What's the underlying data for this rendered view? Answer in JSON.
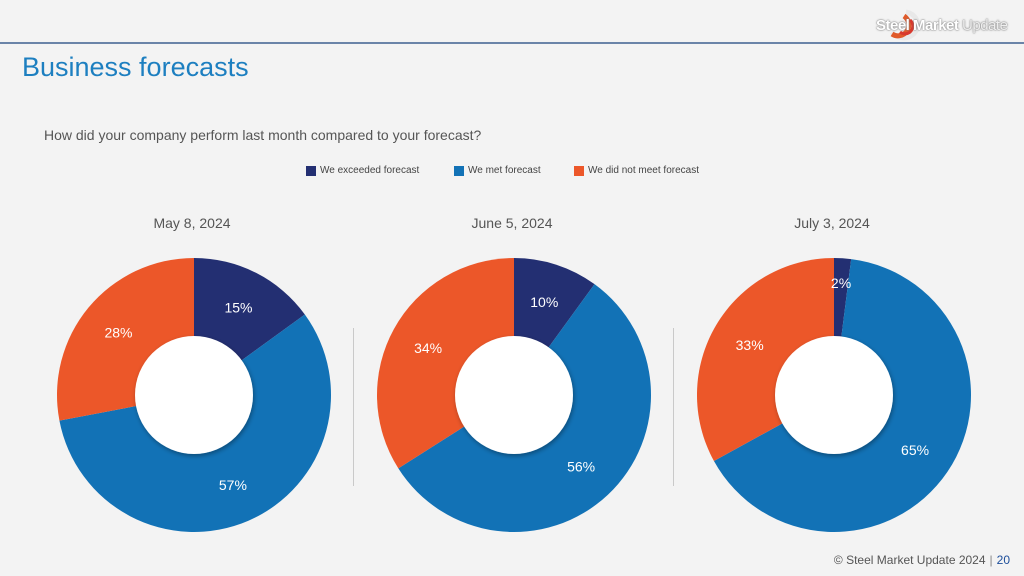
{
  "logo": {
    "brand_bold": "Steel Market",
    "brand_light": " Update",
    "mark": "SM"
  },
  "page": {
    "title": "Business forecasts",
    "question": "How did your company perform last month compared to your forecast?"
  },
  "colors": {
    "exceeded": "#232f72",
    "met": "#1272b6",
    "not_met": "#ec5729",
    "title": "#1d7fc0"
  },
  "legend": [
    {
      "label": "We exceeded forecast",
      "color": "#232f72"
    },
    {
      "label": "We met forecast",
      "color": "#1272b6"
    },
    {
      "label": "We did not meet forecast",
      "color": "#ec5729"
    }
  ],
  "chart_data": [
    {
      "type": "pie",
      "title": "May 8, 2024",
      "categories": [
        "We exceeded forecast",
        "We met forecast",
        "We did not meet forecast"
      ],
      "values": [
        15,
        57,
        28
      ],
      "labels": [
        "15%",
        "57%",
        "28%"
      ]
    },
    {
      "type": "pie",
      "title": "June 5, 2024",
      "categories": [
        "We exceeded forecast",
        "We met forecast",
        "We did not meet forecast"
      ],
      "values": [
        10,
        56,
        34
      ],
      "labels": [
        "10%",
        "56%",
        "34%"
      ]
    },
    {
      "type": "pie",
      "title": "July 3, 2024",
      "categories": [
        "We exceeded forecast",
        "We met forecast",
        "We did not meet forecast"
      ],
      "values": [
        2,
        65,
        33
      ],
      "labels": [
        "2%",
        "65%",
        "33%"
      ]
    }
  ],
  "footer": {
    "copyright": "© Steel Market Update 2024",
    "separator": "|",
    "page_number": "20"
  }
}
